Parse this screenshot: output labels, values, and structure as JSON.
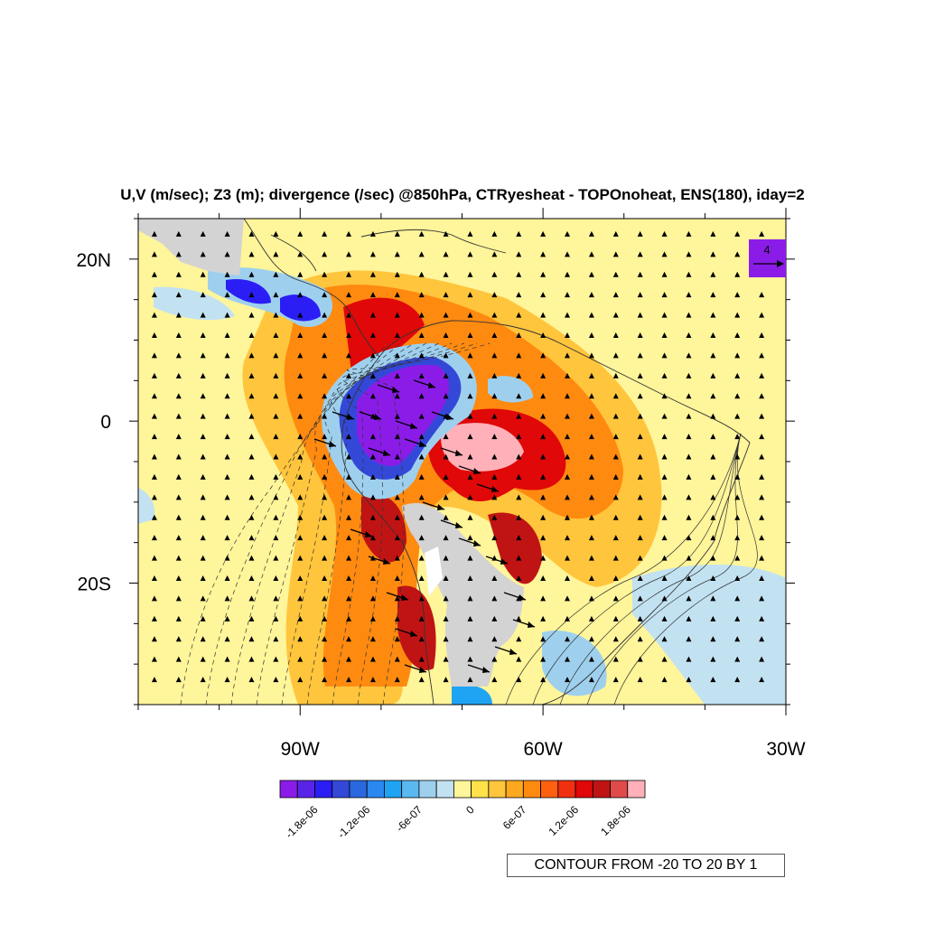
{
  "title": "U,V (m/sec); Z3 (m); divergence (/sec) @850hPa, CTRyesheat - TOPOnoheat, ENS(180), iday=2",
  "map": {
    "lat_range": [
      -35,
      25
    ],
    "lon_range": [
      -110,
      -30
    ],
    "lat_ticks": [
      {
        "value": 20,
        "label": "20N"
      },
      {
        "value": 0,
        "label": "0"
      },
      {
        "value": -20,
        "label": "20S"
      }
    ],
    "lon_ticks": [
      {
        "value": -90,
        "label": "90W"
      },
      {
        "value": -60,
        "label": "60W"
      },
      {
        "value": -30,
        "label": "30W"
      }
    ],
    "reference_vector": {
      "label": "4",
      "units": "m/sec"
    },
    "contour_info": "CONTOUR FROM -20 TO 20 BY 1",
    "fields": [
      "U,V (m/sec)",
      "Z3 (m)",
      "divergence (/sec)"
    ],
    "level": "850hPa"
  },
  "colorbar": {
    "colors": [
      "#8b1ce8",
      "#5a24e8",
      "#2a1ef5",
      "#3448d8",
      "#2a68e0",
      "#2a88f0",
      "#1fa4f4",
      "#5ab8f0",
      "#9ed0ee",
      "#c2e2f2",
      "#fff59a",
      "#ffe14a",
      "#ffc53c",
      "#ffa81e",
      "#ff8a10",
      "#ff6010",
      "#f03010",
      "#e00808",
      "#c01414",
      "#e04a4a",
      "#ffb0b8"
    ],
    "tick_labels": [
      "-1.8e-06",
      "-1.2e-06",
      "-6e-07",
      "0",
      "6e-07",
      "1.2e-06",
      "1.8e-06"
    ]
  },
  "palette": {
    "background_field": "#fff59a",
    "land_mask": "#d3d3d3"
  }
}
